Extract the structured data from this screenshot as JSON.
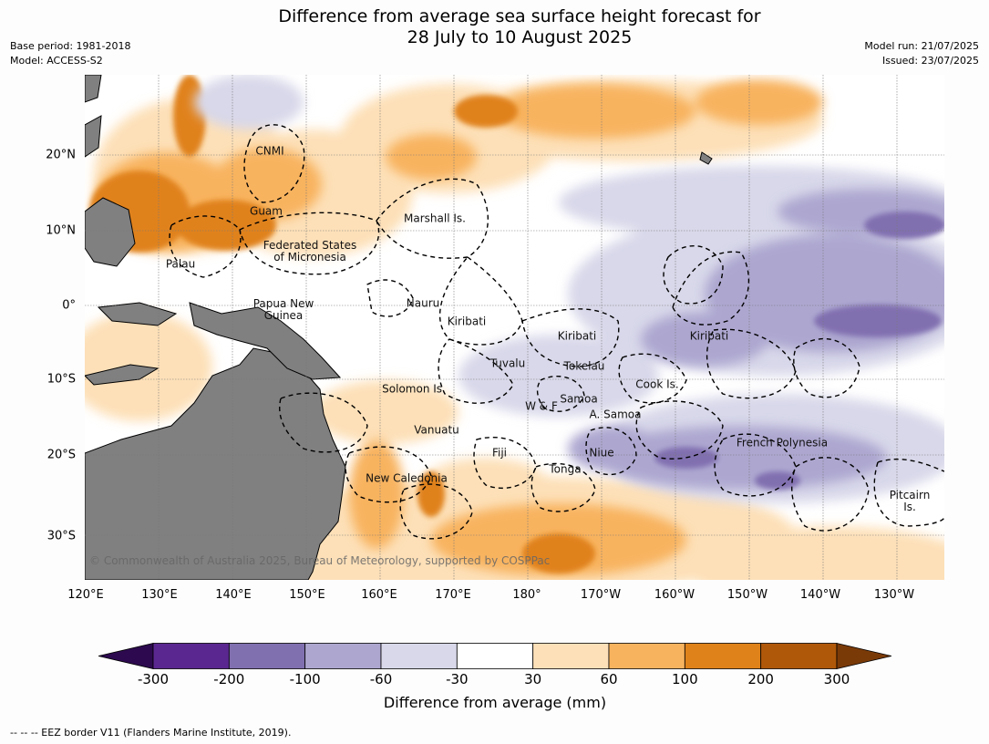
{
  "title": "Difference from average sea surface height forecast for\n28 July to 10 August 2025",
  "meta_left": [
    "Base period: 1981-2018",
    "Model: ACCESS-S2"
  ],
  "meta_right": [
    "Model run: 21/07/2025",
    "Issued: 23/07/2025"
  ],
  "lat_labels": [
    "20°N",
    "10°N",
    "0°",
    "10°S",
    "20°S",
    "30°S"
  ],
  "lon_labels": [
    "120°E",
    "130°E",
    "140°E",
    "150°E",
    "160°E",
    "170°E",
    "180°",
    "170°W",
    "160°W",
    "150°W",
    "140°W",
    "130°W"
  ],
  "places": [
    "CNMI",
    "Guam",
    "Marshall Is.",
    "Federated States\nof Micronesia",
    "Palau",
    "Papua New\nGuinea",
    "Nauru",
    "Kiribati",
    "Kiribati",
    "Kiribati",
    "Tuvalu",
    "Tokelau",
    "Solomon Is.",
    "W & F",
    "Samoa",
    "A. Samoa",
    "Cook Is.",
    "Vanuatu",
    "Fiji",
    "Niue",
    "Tonga",
    "New Caledonia",
    "French Polynesia",
    "Pitcairn\nIs."
  ],
  "credit": "© Commonwealth of Australia 2025, Bureau of Meteorology, supported by COSPPac",
  "colorbar": {
    "ticks": [
      "-300",
      "-200",
      "-100",
      "-60",
      "-30",
      "30",
      "60",
      "100",
      "200",
      "300"
    ],
    "colors": [
      "#2d0a4f",
      "#5a2790",
      "#8170b0",
      "#ada7d0",
      "#d8d8ea",
      "#ffffff",
      "#fde0b8",
      "#f8b35e",
      "#e0821a",
      "#b0580a",
      "#7a3a08"
    ],
    "label": "Difference from average (mm)"
  },
  "footnote": "--  --  -- EEZ border V11 (Flanders Marine Institute, 2019)."
}
